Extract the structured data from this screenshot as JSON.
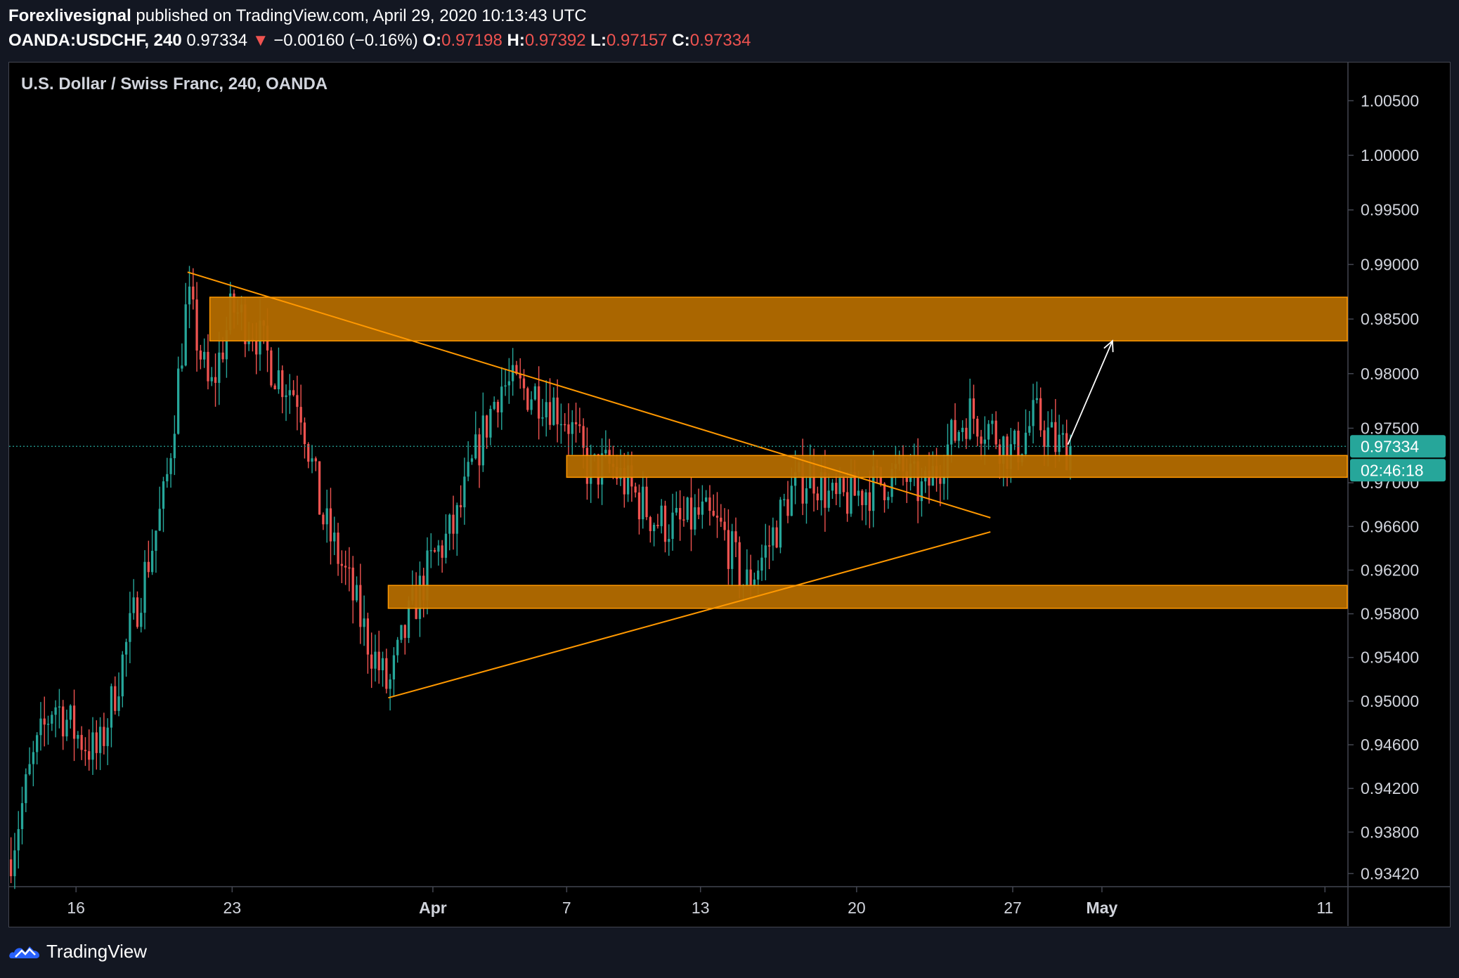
{
  "header": {
    "author": "Forexlivesignal",
    "published": "published on TradingView.com, April 29, 2020 10:13:43 UTC",
    "symbol": "OANDA:USDCHF, 240",
    "last": "0.97334",
    "change_arrow": "▼",
    "change": "−0.00160 (−0.16%)",
    "o_label": "O:",
    "o": "0.97198",
    "h_label": "H:",
    "h": "0.97392",
    "l_label": "L:",
    "l": "0.97157",
    "c_label": "C:",
    "c": "0.97334"
  },
  "footer": {
    "brand": "TradingView",
    "logo_icon": "tradingview-logo-icon"
  },
  "colors": {
    "up": "#26a69a",
    "down": "#ef5350",
    "zone_fill": "#b36b00",
    "zone_stroke": "#ff9800",
    "trendline": "#ff9800",
    "price_line": "#26a69a",
    "axis_text": "#d1d4dc",
    "background": "#000000"
  },
  "chart_data": {
    "type": "candlestick",
    "title": "U.S. Dollar / Swiss Franc, 240, OANDA",
    "last_price_label": "0.97334",
    "countdown_label": "02:46:18",
    "y_ticks": [
      {
        "label": "1.00500",
        "value": 1.005
      },
      {
        "label": "1.00000",
        "value": 1.0
      },
      {
        "label": "0.99500",
        "value": 0.995
      },
      {
        "label": "0.99000",
        "value": 0.99
      },
      {
        "label": "0.98500",
        "value": 0.985
      },
      {
        "label": "0.98000",
        "value": 0.98
      },
      {
        "label": "0.97500",
        "value": 0.975
      },
      {
        "label": "0.97000",
        "value": 0.97
      },
      {
        "label": "0.96600",
        "value": 0.966
      },
      {
        "label": "0.96200",
        "value": 0.962
      },
      {
        "label": "0.95800",
        "value": 0.958
      },
      {
        "label": "0.95400",
        "value": 0.954
      },
      {
        "label": "0.95000",
        "value": 0.95
      },
      {
        "label": "0.94600",
        "value": 0.946
      },
      {
        "label": "0.94200",
        "value": 0.942
      },
      {
        "label": "0.93800",
        "value": 0.938
      },
      {
        "label": "0.93420",
        "value": 0.9342
      }
    ],
    "x_ticks": [
      {
        "label": "16",
        "date": "2020-03-16"
      },
      {
        "label": "23",
        "date": "2020-03-23"
      },
      {
        "label": "Apr",
        "date": "2020-04-01"
      },
      {
        "label": "7",
        "date": "2020-04-07"
      },
      {
        "label": "13",
        "date": "2020-04-13"
      },
      {
        "label": "20",
        "date": "2020-04-20"
      },
      {
        "label": "27",
        "date": "2020-04-27"
      },
      {
        "label": "May",
        "date": "2020-05-01"
      },
      {
        "label": "11",
        "date": "2020-05-11"
      }
    ],
    "date_range": [
      "2020-03-13",
      "2020-05-12"
    ],
    "price_range": [
      0.933,
      1.0085
    ],
    "last_price": 0.97334,
    "zones": [
      {
        "name": "resistance-zone",
        "start": "2020-03-22",
        "end": "2020-05-12",
        "top": 0.987,
        "bottom": 0.983
      },
      {
        "name": "breakout-zone",
        "start": "2020-04-07",
        "end": "2020-05-12",
        "top": 0.9725,
        "bottom": 0.9705
      },
      {
        "name": "support-zone",
        "start": "2020-03-30",
        "end": "2020-05-12",
        "top": 0.9606,
        "bottom": 0.9585
      }
    ],
    "trendlines": [
      {
        "name": "descending-trendline",
        "start": [
          "2020-03-21",
          0.9893
        ],
        "end": [
          "2020-04-26",
          0.9668
        ]
      },
      {
        "name": "ascending-trendline",
        "start": [
          "2020-03-30",
          0.9503
        ],
        "end": [
          "2020-04-26",
          0.9655
        ]
      }
    ],
    "projection_arrow": {
      "start": [
        "2020-04-29",
        0.9735
      ],
      "end": [
        "2020-05-01",
        0.983
      ]
    },
    "waypoints": [
      [
        "2020-03-13",
        0.9355
      ],
      [
        "2020-03-14",
        0.944
      ],
      [
        "2020-03-15",
        0.95
      ],
      [
        "2020-03-16",
        0.947
      ],
      [
        "2020-03-17",
        0.945
      ],
      [
        "2020-03-18",
        0.953
      ],
      [
        "2020-03-19",
        0.961
      ],
      [
        "2020-03-20",
        0.969
      ],
      [
        "2020-03-21",
        0.987
      ],
      [
        "2020-03-22",
        0.978
      ],
      [
        "2020-03-23",
        0.986
      ],
      [
        "2020-03-24",
        0.984
      ],
      [
        "2020-03-25",
        0.98
      ],
      [
        "2020-03-26",
        0.978
      ],
      [
        "2020-03-27",
        0.967
      ],
      [
        "2020-03-28",
        0.962
      ],
      [
        "2020-03-29",
        0.956
      ],
      [
        "2020-03-30",
        0.951
      ],
      [
        "2020-03-31",
        0.958
      ],
      [
        "2020-04-01",
        0.963
      ],
      [
        "2020-04-02",
        0.966
      ],
      [
        "2020-04-03",
        0.973
      ],
      [
        "2020-04-04",
        0.979
      ],
      [
        "2020-04-06",
        0.978
      ],
      [
        "2020-04-07",
        0.976
      ],
      [
        "2020-04-08",
        0.971
      ],
      [
        "2020-04-09",
        0.9715
      ],
      [
        "2020-04-10",
        0.969
      ],
      [
        "2020-04-11",
        0.9665
      ],
      [
        "2020-04-12",
        0.966
      ],
      [
        "2020-04-13",
        0.967
      ],
      [
        "2020-04-14",
        0.9655
      ],
      [
        "2020-04-15",
        0.9605
      ],
      [
        "2020-04-16",
        0.964
      ],
      [
        "2020-04-17",
        0.969
      ],
      [
        "2020-04-18",
        0.971
      ],
      [
        "2020-04-19",
        0.968
      ],
      [
        "2020-04-20",
        0.969
      ],
      [
        "2020-04-21",
        0.97
      ],
      [
        "2020-04-22",
        0.971
      ],
      [
        "2020-04-23",
        0.969
      ],
      [
        "2020-04-24",
        0.973
      ],
      [
        "2020-04-25",
        0.9765
      ],
      [
        "2020-04-26",
        0.975
      ],
      [
        "2020-04-27",
        0.9725
      ],
      [
        "2020-04-28",
        0.976
      ],
      [
        "2020-04-29",
        0.9733
      ]
    ],
    "candles_per_day": 6
  }
}
